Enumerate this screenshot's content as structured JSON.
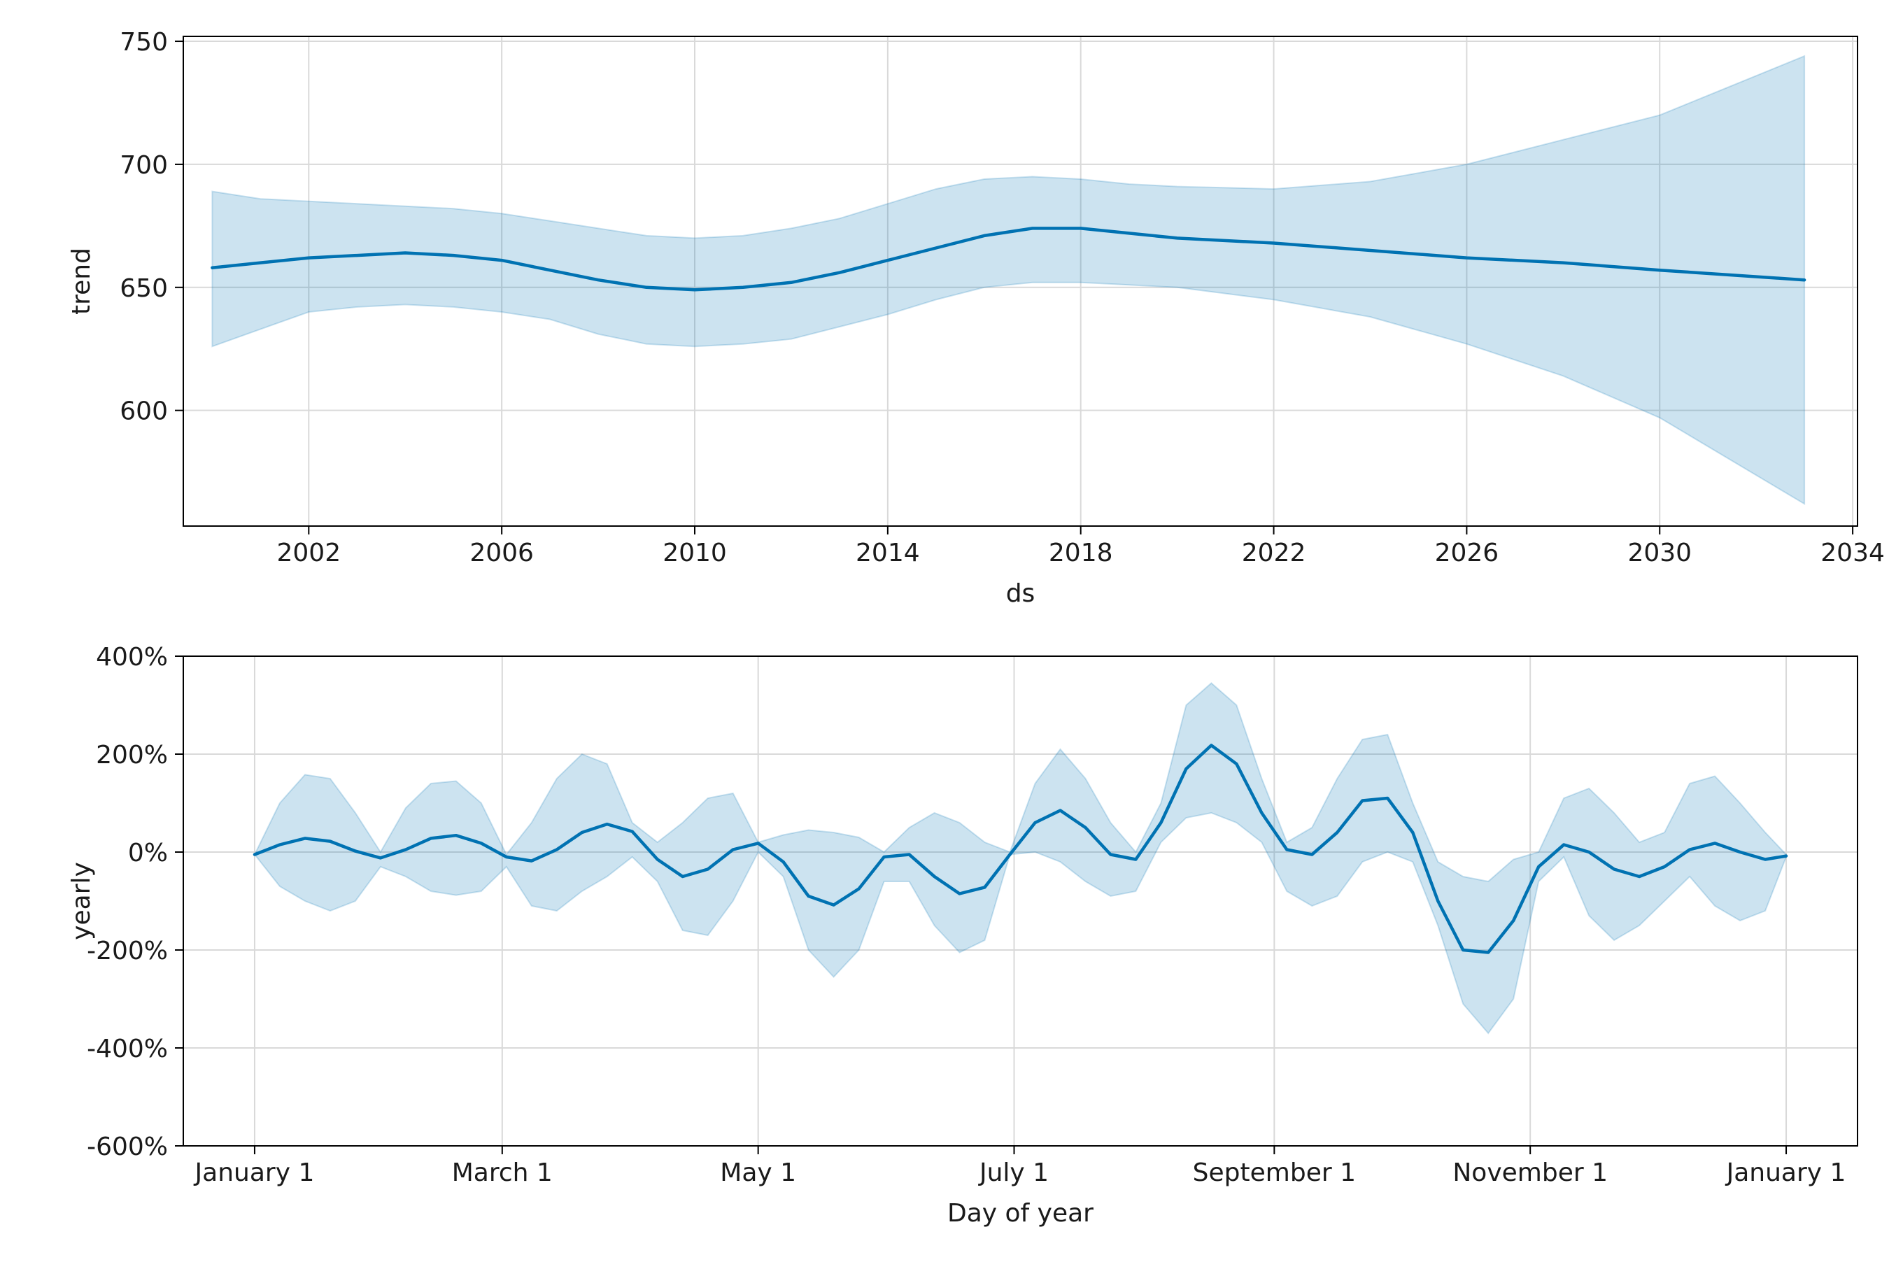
{
  "chart_data": [
    {
      "type": "line",
      "title": "",
      "xlabel": "ds",
      "ylabel": "trend",
      "x_type": "year",
      "xlim": [
        1999.4,
        2034.1
      ],
      "ylim": [
        553,
        752
      ],
      "xticks": [
        2002,
        2006,
        2010,
        2014,
        2018,
        2022,
        2026,
        2030,
        2034
      ],
      "xtick_labels": [
        "2002",
        "2006",
        "2010",
        "2014",
        "2018",
        "2022",
        "2026",
        "2030",
        "2034"
      ],
      "yticks": [
        600,
        650,
        700,
        750
      ],
      "ytick_labels": [
        "600",
        "650",
        "700",
        "750"
      ],
      "grid": true,
      "series": [
        {
          "x": [
            2000.0,
            2001.0,
            2002.0,
            2003.0,
            2004.0,
            2005.0,
            2006.0,
            2007.0,
            2008.0,
            2009.0,
            2010.0,
            2011.0,
            2012.0,
            2013.0,
            2014.0,
            2015.0,
            2016.0,
            2017.0,
            2018.0,
            2019.0,
            2020.0,
            2022.0,
            2024.0,
            2026.0,
            2028.0,
            2030.0,
            2033.0
          ],
          "y": [
            658,
            660,
            662,
            663,
            664,
            663,
            661,
            657,
            653,
            650,
            649,
            650,
            652,
            656,
            661,
            666,
            671,
            674,
            674,
            672,
            670,
            668,
            665,
            662,
            660,
            657,
            653
          ],
          "lower": [
            626,
            633,
            640,
            642,
            643,
            642,
            640,
            637,
            631,
            627,
            626,
            627,
            629,
            634,
            639,
            645,
            650,
            652,
            652,
            651,
            650,
            645,
            638,
            627,
            614,
            597,
            562
          ],
          "upper": [
            689,
            686,
            685,
            684,
            683,
            682,
            680,
            677,
            674,
            671,
            670,
            671,
            674,
            678,
            684,
            690,
            694,
            695,
            694,
            692,
            691,
            690,
            693,
            700,
            710,
            720,
            744
          ]
        }
      ]
    },
    {
      "type": "line",
      "title": "",
      "xlabel": "Day of year",
      "ylabel": "yearly",
      "x_type": "day_of_year",
      "xlim": [
        -17,
        382
      ],
      "ylim": [
        -600,
        400
      ],
      "xticks": [
        0,
        59,
        120,
        181,
        243,
        304,
        365
      ],
      "xtick_labels": [
        "January 1",
        "March 1",
        "May 1",
        "July 1",
        "September 1",
        "November 1",
        "January 1"
      ],
      "yticks": [
        -600,
        -400,
        -200,
        0,
        200,
        400
      ],
      "ytick_labels": [
        "-600%",
        "-400%",
        "-200%",
        "0%",
        "200%",
        "400%"
      ],
      "grid": true,
      "series": [
        {
          "x": [
            0,
            6,
            12,
            18,
            24,
            30,
            36,
            42,
            48,
            54,
            60,
            66,
            72,
            78,
            84,
            90,
            96,
            102,
            108,
            114,
            120,
            126,
            132,
            138,
            144,
            150,
            156,
            162,
            168,
            174,
            180,
            186,
            192,
            198,
            204,
            210,
            216,
            222,
            228,
            234,
            240,
            246,
            252,
            258,
            264,
            270,
            276,
            282,
            288,
            294,
            300,
            306,
            312,
            318,
            324,
            330,
            336,
            342,
            348,
            354,
            360,
            365
          ],
          "y": [
            -5,
            15,
            28,
            22,
            2,
            -12,
            5,
            28,
            34,
            18,
            -10,
            -18,
            5,
            40,
            57,
            42,
            -15,
            -50,
            -35,
            5,
            18,
            -20,
            -90,
            -108,
            -75,
            -10,
            -5,
            -50,
            -85,
            -72,
            -5,
            60,
            85,
            50,
            -5,
            -15,
            60,
            170,
            218,
            180,
            80,
            5,
            -5,
            40,
            105,
            110,
            40,
            -100,
            -200,
            -205,
            -140,
            -30,
            15,
            0,
            -35,
            -50,
            -30,
            5,
            18,
            0,
            -15,
            -8
          ],
          "lower": [
            -5,
            -70,
            -100,
            -120,
            -100,
            -30,
            -50,
            -80,
            -88,
            -80,
            -30,
            -110,
            -120,
            -80,
            -50,
            -10,
            -60,
            -160,
            -170,
            -100,
            0,
            -50,
            -200,
            -255,
            -200,
            -60,
            -60,
            -150,
            -205,
            -180,
            -5,
            0,
            -20,
            -60,
            -90,
            -80,
            20,
            70,
            80,
            60,
            20,
            -80,
            -110,
            -90,
            -20,
            0,
            -20,
            -150,
            -310,
            -370,
            -300,
            -60,
            -10,
            -130,
            -180,
            -150,
            -100,
            -50,
            -110,
            -140,
            -120,
            -10
          ],
          "upper": [
            -5,
            100,
            158,
            150,
            80,
            0,
            90,
            140,
            145,
            100,
            -5,
            60,
            150,
            200,
            180,
            60,
            20,
            60,
            110,
            120,
            20,
            35,
            45,
            40,
            30,
            0,
            50,
            80,
            60,
            20,
            0,
            140,
            210,
            150,
            60,
            0,
            100,
            300,
            345,
            300,
            150,
            20,
            50,
            150,
            230,
            240,
            100,
            -20,
            -50,
            -60,
            -15,
            0,
            110,
            130,
            80,
            20,
            40,
            140,
            155,
            100,
            40,
            -5
          ]
        }
      ]
    }
  ]
}
